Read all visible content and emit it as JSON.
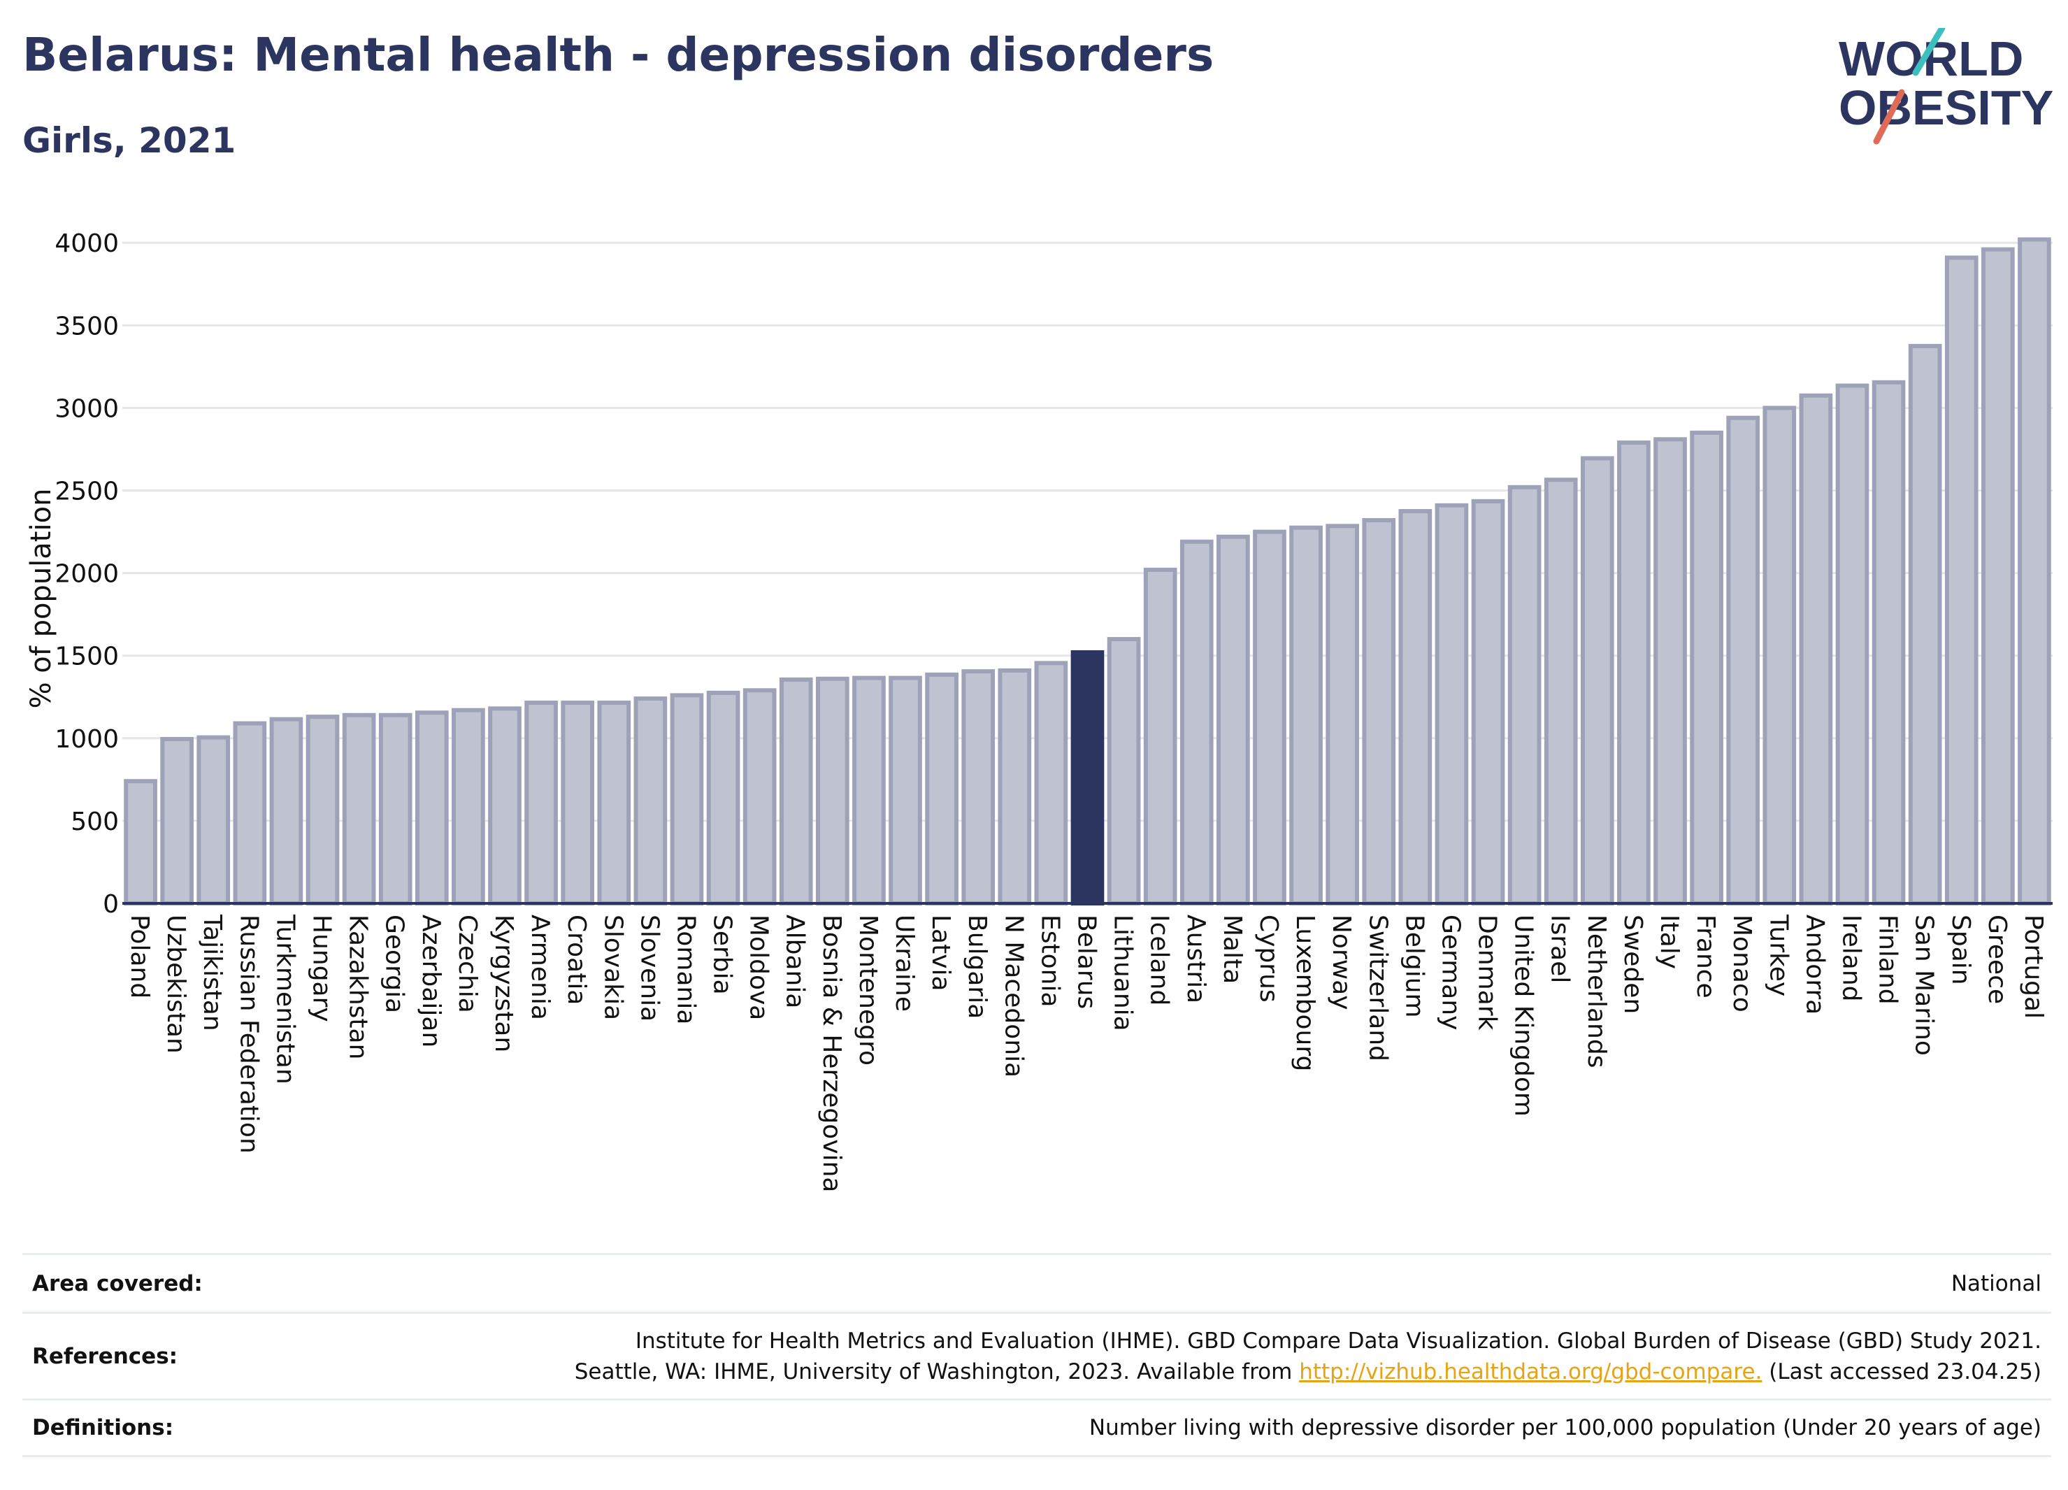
{
  "title": "Belarus: Mental health - depression disorders",
  "subtitle": "Girls, 2021",
  "logo": {
    "line1": "WORLD",
    "line2": "OBESITY"
  },
  "chart_data": {
    "type": "bar",
    "ylabel": "% of population",
    "ylim": [
      0,
      4200
    ],
    "yticks": [
      0,
      500,
      1000,
      1500,
      2000,
      2500,
      3000,
      3500,
      4000
    ],
    "grid": true,
    "highlight": "Belarus",
    "categories": [
      "Poland",
      "Uzbekistan",
      "Tajikistan",
      "Russian Federation",
      "Turkmenistan",
      "Hungary",
      "Kazakhstan",
      "Georgia",
      "Azerbaijan",
      "Czechia",
      "Kyrgyzstan",
      "Armenia",
      "Croatia",
      "Slovakia",
      "Slovenia",
      "Romania",
      "Serbia",
      "Moldova",
      "Albania",
      "Bosnia & Herzegovina",
      "Montenegro",
      "Ukraine",
      "Latvia",
      "Bulgaria",
      "N Macedonia",
      "Estonia",
      "Belarus",
      "Lithuania",
      "Iceland",
      "Austria",
      "Malta",
      "Cyprus",
      "Luxembourg",
      "Norway",
      "Switzerland",
      "Belgium",
      "Germany",
      "Denmark",
      "United Kingdom",
      "Israel",
      "Netherlands",
      "Sweden",
      "Italy",
      "France",
      "Monaco",
      "Turkey",
      "Andorra",
      "Ireland",
      "Finland",
      "San Marino",
      "Spain",
      "Greece",
      "Portugal"
    ],
    "values": [
      740,
      995,
      1005,
      1090,
      1115,
      1130,
      1140,
      1140,
      1155,
      1170,
      1180,
      1215,
      1215,
      1215,
      1240,
      1260,
      1275,
      1290,
      1355,
      1360,
      1365,
      1365,
      1385,
      1405,
      1410,
      1455,
      1520,
      1600,
      2020,
      2190,
      2220,
      2250,
      2275,
      2285,
      2320,
      2375,
      2410,
      2435,
      2520,
      2565,
      2695,
      2790,
      2810,
      2850,
      2940,
      3000,
      3075,
      3135,
      3155,
      3375,
      3910,
      3960,
      4020
    ],
    "colors": {
      "bar": "#bfc3d1",
      "bar_border": "#9ea2b8",
      "highlight": "#2c3560",
      "grid": "#e6e6e6",
      "axis": "#2c3560"
    }
  },
  "info": {
    "area_label": "Area covered:",
    "area_value": "National",
    "references_label": "References:",
    "references_line1": "Institute for Health Metrics and Evaluation (IHME). GBD Compare Data Visualization. Global Burden of Disease (GBD) Study 2021.",
    "references_line2_pre": "Seattle, WA: IHME, University of Washington, 2023. Available from ",
    "references_link": "http://vizhub.healthdata.org/gbd-compare.",
    "references_line2_post": " (Last accessed 23.04.25)",
    "definitions_label": "Definitions:",
    "definitions_value": "Number living with depressive disorder per 100,000 population (Under 20 years of age)"
  }
}
